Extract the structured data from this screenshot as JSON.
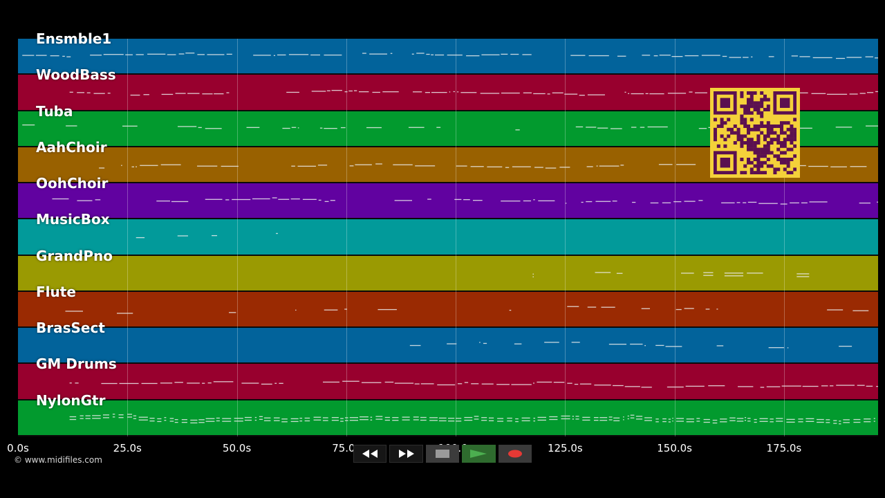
{
  "tracks": [
    {
      "name": "Ensmble1",
      "color": "#02639b"
    },
    {
      "name": "WoodBass",
      "color": "#98002e"
    },
    {
      "name": "Tuba",
      "color": "#029a2e"
    },
    {
      "name": "AahChoir",
      "color": "#996100"
    },
    {
      "name": "OohChoir",
      "color": "#6102a0"
    },
    {
      "name": "MusicBox",
      "color": "#029a9a"
    },
    {
      "name": "GrandPno",
      "color": "#9a9a02"
    },
    {
      "name": "Flute",
      "color": "#9a2a02"
    },
    {
      "name": "BrasSect",
      "color": "#02639b"
    },
    {
      "name": "GM Drums",
      "color": "#98002e"
    },
    {
      "name": "NylonGtr",
      "color": "#029a2e"
    }
  ],
  "timeline": {
    "ticks": [
      "0.0s",
      "25.0s",
      "50.0s",
      "75.0s",
      "100.0s",
      "125.0s",
      "150.0s",
      "175.0s"
    ],
    "tick_values": [
      0,
      25,
      50,
      75,
      100,
      125,
      150,
      175
    ],
    "max_seconds": 196.5
  },
  "copyright": "© www.midifiles.com",
  "transport": {
    "rewind_icon": "rewind-icon",
    "fast_forward_icon": "fast-forward-icon",
    "stop_icon": "stop-icon",
    "play_icon": "play-icon",
    "record_icon": "record-icon",
    "play_color": "#4caf50",
    "record_color": "#e53935"
  },
  "qr_color": "#f4d13a",
  "qr_dark_color": "#5b1050"
}
